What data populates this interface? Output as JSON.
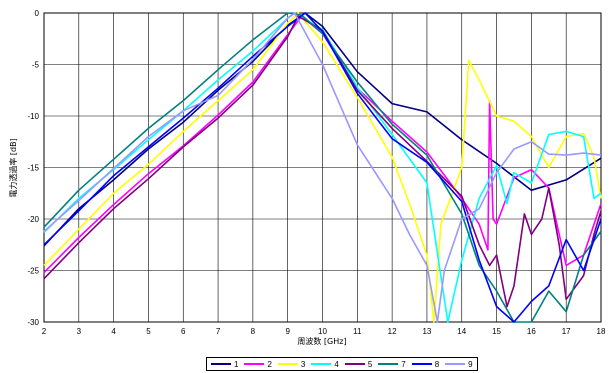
{
  "chart_data": {
    "type": "line",
    "xlabel": "周波数 [GHz]",
    "ylabel": "電力透過率 [dB]",
    "xlim": [
      2,
      18
    ],
    "ylim": [
      -30,
      0
    ],
    "xticks": [
      "2",
      "3",
      "4",
      "5",
      "6",
      "7",
      "8",
      "9",
      "10",
      "11",
      "12",
      "13",
      "14",
      "15",
      "16",
      "17",
      "18"
    ],
    "yticks": [
      "0",
      "-5",
      "-10",
      "-15",
      "-20",
      "-25",
      "-30"
    ],
    "grid": true,
    "legend_position": "bottom",
    "series": [
      {
        "name": "1",
        "color": "#000080",
        "x": [
          2,
          3,
          4,
          5,
          6,
          7,
          8,
          9,
          9.5,
          10,
          11,
          12,
          13,
          14,
          15,
          16,
          17,
          18
        ],
        "y": [
          -22.6,
          -19,
          -16.2,
          -13.2,
          -10.6,
          -7.5,
          -4.7,
          -1.2,
          0,
          -1.3,
          -5.7,
          -8.8,
          -9.6,
          -12.3,
          -14.6,
          -17.2,
          -16.2,
          -14.1
        ]
      },
      {
        "name": "2",
        "color": "#FF00FF",
        "x": [
          2,
          3,
          4,
          5,
          6,
          7,
          8,
          9,
          9.4,
          10,
          11,
          12,
          13,
          14,
          14.5,
          14.75,
          14.8,
          14.9,
          15,
          15.5,
          16,
          16.5,
          17,
          17.5,
          18
        ],
        "y": [
          -25.2,
          -21.8,
          -18.6,
          -15.6,
          -12.9,
          -9.9,
          -6.7,
          -2.1,
          -0.3,
          -2,
          -7.3,
          -10.5,
          -13.5,
          -18,
          -20.5,
          -23,
          -8.5,
          -20,
          -20.5,
          -16,
          -15.2,
          -17,
          -24.5,
          -23.5,
          -18.5
        ]
      },
      {
        "name": "3",
        "color": "#FFFF00",
        "x": [
          2,
          3,
          4,
          5,
          6,
          7,
          8,
          9,
          9.3,
          10,
          11,
          12,
          12.5,
          13,
          13.2,
          13.4,
          14,
          14.2,
          14.5,
          15,
          15.5,
          16,
          16.5,
          17,
          17.5,
          17.8,
          18
        ],
        "y": [
          -24.5,
          -21,
          -17.5,
          -14.7,
          -11.5,
          -8.5,
          -5.5,
          -1,
          0,
          -2.8,
          -8.2,
          -14,
          -18.5,
          -23.5,
          -30,
          -20.5,
          -15,
          -4.6,
          -6.5,
          -10,
          -10.5,
          -12,
          -15,
          -12,
          -11.7,
          -14,
          -18
        ]
      },
      {
        "name": "4",
        "color": "#00FFFF",
        "x": [
          2,
          3,
          4,
          5,
          6,
          7,
          8,
          9,
          9.2,
          10,
          11,
          12,
          13,
          13.6,
          14,
          14.5,
          15,
          15.3,
          15.5,
          16,
          16.5,
          17,
          17.5,
          17.8,
          18
        ],
        "y": [
          -21.3,
          -18,
          -15.2,
          -12.3,
          -9.5,
          -6.5,
          -3.7,
          -0.5,
          0,
          -1.6,
          -7.2,
          -11.8,
          -16.5,
          -30,
          -24,
          -18,
          -14.8,
          -18.5,
          -15.5,
          -16.5,
          -11.8,
          -11.5,
          -12,
          -18,
          -17.5
        ]
      },
      {
        "name": "5",
        "color": "#800080",
        "x": [
          2,
          3,
          4,
          5,
          6,
          7,
          8,
          9,
          9.3,
          10,
          11,
          12,
          13,
          14,
          14.5,
          14.8,
          15,
          15.3,
          15.5,
          15.8,
          16,
          16.3,
          16.5,
          16.8,
          17,
          17.5,
          17.8,
          18
        ],
        "y": [
          -25.8,
          -22.3,
          -19,
          -16.1,
          -13,
          -10.2,
          -7,
          -2.3,
          -0.3,
          -1.7,
          -7.5,
          -11.2,
          -14.4,
          -17.8,
          -22.5,
          -24.5,
          -23.5,
          -28.5,
          -26.5,
          -19.5,
          -21.5,
          -20,
          -17,
          -22.5,
          -27.8,
          -25.5,
          -21.5,
          -19.2
        ]
      },
      {
        "name": "7",
        "color": "#008080",
        "x": [
          2,
          3,
          4,
          5,
          6,
          7,
          8,
          9,
          9.4,
          10,
          11,
          12,
          13,
          14,
          14.5,
          15,
          15.5,
          16,
          16.5,
          17,
          17.5,
          18
        ],
        "y": [
          -20.8,
          -17.2,
          -14.2,
          -11.2,
          -8.5,
          -5.5,
          -2.6,
          0,
          -0.2,
          -2,
          -6.7,
          -10.8,
          -13.8,
          -19.5,
          -24.5,
          -27,
          -30,
          -30,
          -27,
          -29,
          -23.5,
          -21.2
        ]
      },
      {
        "name": "8",
        "color": "#0000FF",
        "x": [
          2,
          3,
          4,
          5,
          6,
          7,
          8,
          9,
          9.5,
          10,
          11,
          12,
          13,
          14,
          14.5,
          15,
          15.5,
          16,
          16.5,
          17,
          17.5,
          18
        ],
        "y": [
          -22.5,
          -19.2,
          -15.8,
          -13,
          -10.2,
          -7.3,
          -4.2,
          -1.3,
          0,
          -1.8,
          -7.8,
          -12.2,
          -14.5,
          -18.3,
          -24,
          -28.5,
          -30,
          -28,
          -26.5,
          -22,
          -25,
          -20
        ]
      },
      {
        "name": "9",
        "color": "#9999FF",
        "x": [
          2,
          3,
          4,
          5,
          6,
          7,
          8,
          9,
          9.2,
          10,
          11,
          12,
          12.5,
          13,
          13.3,
          13.5,
          14,
          14.5,
          15,
          15.5,
          16,
          16.5,
          17,
          17.5,
          18
        ],
        "y": [
          -21.2,
          -18.2,
          -15.1,
          -12,
          -9.5,
          -8,
          -4.5,
          -0.5,
          0,
          -5,
          -12.8,
          -18,
          -21.5,
          -24.5,
          -30,
          -25,
          -20,
          -19,
          -15.5,
          -13.2,
          -12.5,
          -13.7,
          -13.8,
          -13.6,
          -13.8
        ]
      }
    ]
  }
}
